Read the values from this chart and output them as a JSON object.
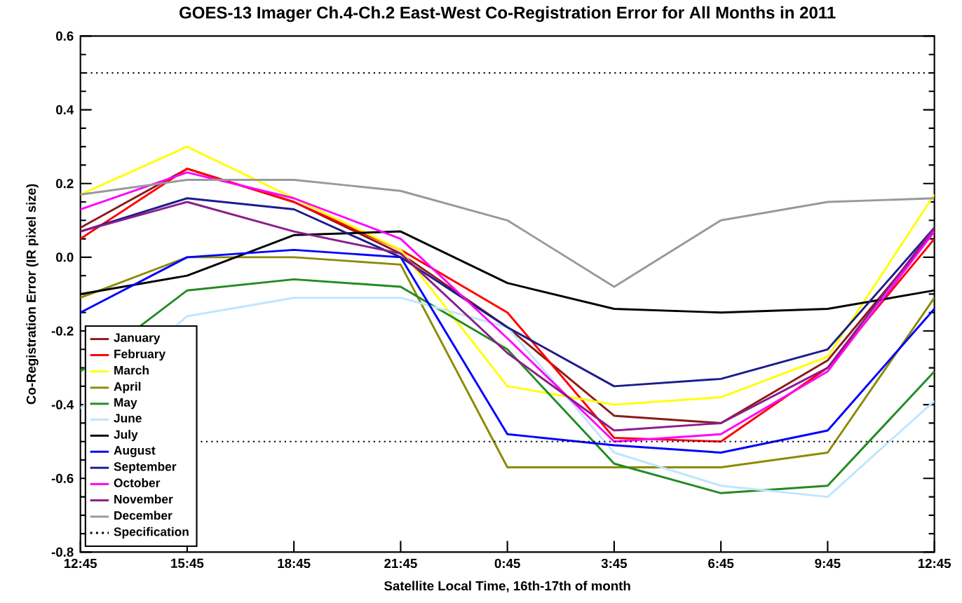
{
  "chart_data": {
    "type": "line",
    "title": "GOES-13 Imager Ch.4-Ch.2 East-West Co-Registration Error for All Months in 2011",
    "xlabel": "Satellite Local Time, 16th-17th of month",
    "ylabel": "Co-Registration Error (IR pixel size)",
    "categories": [
      "12:45",
      "15:45",
      "18:45",
      "21:45",
      "0:45",
      "3:45",
      "6:45",
      "9:45",
      "12:45"
    ],
    "ylim": [
      -0.8,
      0.6
    ],
    "yticks": [
      -0.8,
      -0.6,
      -0.4,
      -0.2,
      {
        "value": 0,
        "label": "0.0"
      },
      0.2,
      0.4,
      0.6
    ],
    "legend": "bottom left",
    "marker": "none",
    "line_style": "solid",
    "grid": false,
    "series": [
      {
        "name": "January",
        "color": "#8b1a1a",
        "values": [
          0.08,
          0.24,
          0.15,
          0.01,
          -0.19,
          -0.43,
          -0.45,
          -0.28,
          0.07
        ]
      },
      {
        "name": "February",
        "color": "#ff0000",
        "values": [
          0.05,
          0.24,
          0.15,
          0.02,
          -0.15,
          -0.49,
          -0.5,
          -0.3,
          0.05
        ]
      },
      {
        "name": "March",
        "color": "#ffff00",
        "values": [
          0.17,
          0.3,
          0.16,
          0.02,
          -0.35,
          -0.4,
          -0.38,
          -0.27,
          0.17
        ]
      },
      {
        "name": "April",
        "color": "#8b8b00",
        "values": [
          -0.11,
          0.0,
          0.0,
          -0.02,
          -0.57,
          -0.57,
          -0.57,
          -0.53,
          -0.11
        ]
      },
      {
        "name": "May",
        "color": "#228b22",
        "values": [
          -0.31,
          -0.09,
          -0.06,
          -0.08,
          -0.25,
          -0.56,
          -0.64,
          -0.62,
          -0.31
        ]
      },
      {
        "name": "June",
        "color": "#bfe6ff",
        "values": [
          -0.41,
          -0.16,
          -0.11,
          -0.11,
          -0.19,
          -0.53,
          -0.62,
          -0.65,
          -0.39
        ]
      },
      {
        "name": "July",
        "color": "#000000",
        "values": [
          -0.1,
          -0.05,
          0.06,
          0.07,
          -0.07,
          -0.14,
          -0.15,
          -0.14,
          -0.09
        ]
      },
      {
        "name": "August",
        "color": "#0000ff",
        "values": [
          -0.15,
          0.0,
          0.02,
          0.0,
          -0.48,
          -0.51,
          -0.53,
          -0.47,
          -0.14
        ]
      },
      {
        "name": "September",
        "color": "#1c1c8b",
        "values": [
          0.07,
          0.16,
          0.13,
          0.0,
          -0.19,
          -0.35,
          -0.33,
          -0.25,
          0.08
        ]
      },
      {
        "name": "October",
        "color": "#ff00ff",
        "values": [
          0.13,
          0.23,
          0.16,
          0.05,
          -0.22,
          -0.5,
          -0.48,
          -0.31,
          0.07
        ]
      },
      {
        "name": "November",
        "color": "#8b1c8b",
        "values": [
          0.07,
          0.15,
          0.07,
          0.01,
          -0.26,
          -0.47,
          -0.45,
          -0.3,
          0.08
        ]
      },
      {
        "name": "December",
        "color": "#999999",
        "values": [
          0.17,
          0.21,
          0.21,
          0.18,
          0.1,
          -0.08,
          0.1,
          0.15,
          0.16
        ]
      }
    ],
    "ref_lines": [
      {
        "axis": "y",
        "value": 0.5,
        "label": "Specification",
        "color": "#000000",
        "line_style": "dotted"
      },
      {
        "axis": "y",
        "value": -0.5,
        "color": "#000000",
        "line_style": "dotted"
      }
    ]
  }
}
